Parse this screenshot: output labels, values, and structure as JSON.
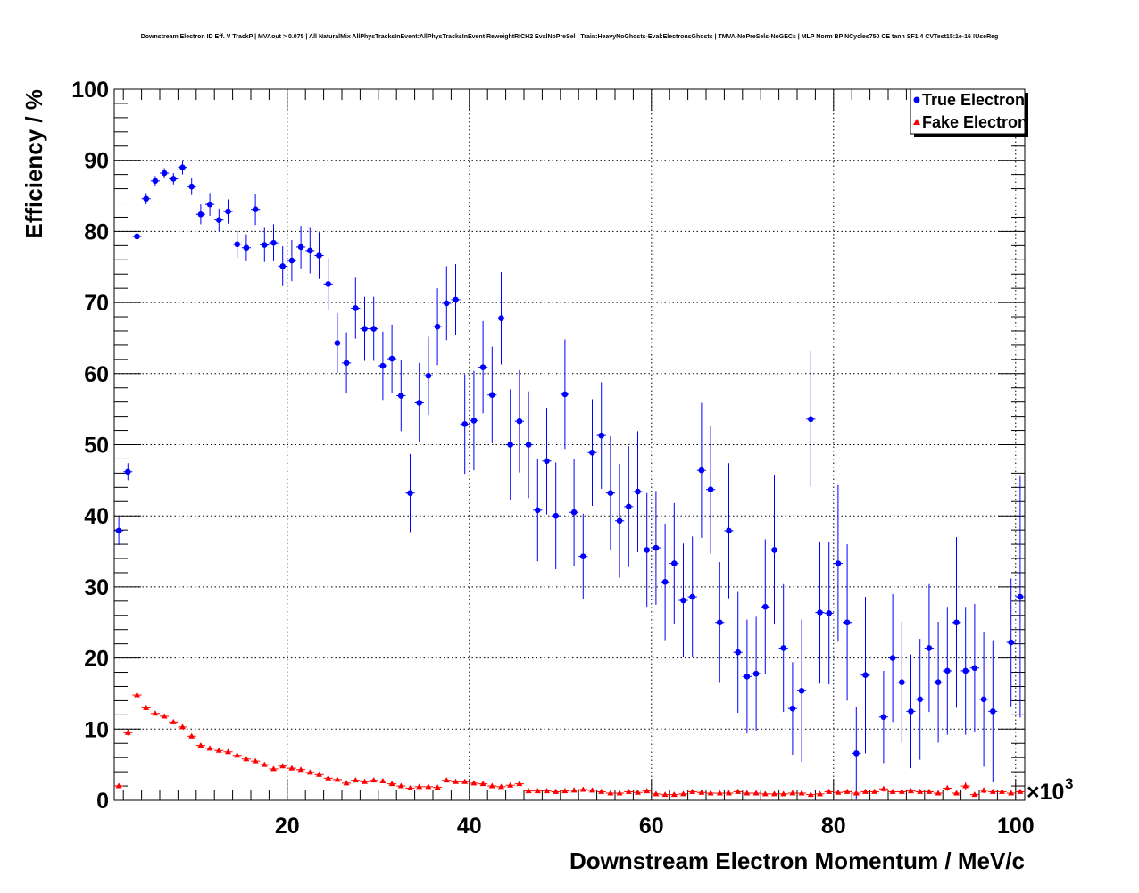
{
  "chart_data": {
    "type": "scatter",
    "title": "Downstream Electron ID Eff. V TrackP | MVAout > 0.075 | All NaturalMix AllPhysTracksInEvent:AllPhysTracksInEvent ReweightRICH2 EvalNoPreSel | Train:HeavyNoGhosts-Eval:ElectronsGhosts | TMVA-NoPreSels-NoGECs | MLP Norm BP NCycles750 CE tanh SF1.4 CVTest15:1e-16 !UseReg",
    "xlabel": "Downstream Electron Momentum / MeV/c",
    "ylabel": "Efficiency / %",
    "x_multiplier_label": "×10",
    "x_multiplier_exp": "3",
    "xlim": [
      1,
      101
    ],
    "ylim": [
      0,
      100
    ],
    "x_ticks": [
      20,
      40,
      60,
      80,
      100
    ],
    "y_ticks": [
      0,
      10,
      20,
      30,
      40,
      50,
      60,
      70,
      80,
      90,
      100
    ],
    "grid": true,
    "legend_position": "top-right",
    "series": [
      {
        "name": "True Electron",
        "color": "#0000ff",
        "marker": "circle",
        "x": [
          1.5,
          2.5,
          3.5,
          4.5,
          5.5,
          6.5,
          7.5,
          8.5,
          9.5,
          10.5,
          11.5,
          12.5,
          13.5,
          14.5,
          15.5,
          16.5,
          17.5,
          18.5,
          19.5,
          20.5,
          21.5,
          22.5,
          23.5,
          24.5,
          25.5,
          26.5,
          27.5,
          28.5,
          29.5,
          30.5,
          31.5,
          32.5,
          33.5,
          34.5,
          35.5,
          36.5,
          37.5,
          38.5,
          39.5,
          40.5,
          41.5,
          42.5,
          43.5,
          44.5,
          45.5,
          46.5,
          47.5,
          48.5,
          49.5,
          50.5,
          51.5,
          52.5,
          53.5,
          54.5,
          55.5,
          56.5,
          57.5,
          58.5,
          59.5,
          60.5,
          61.5,
          62.5,
          63.5,
          64.5,
          65.5,
          66.5,
          67.5,
          68.5,
          69.5,
          70.5,
          71.5,
          72.5,
          73.5,
          74.5,
          75.5,
          76.5,
          77.5,
          78.5,
          79.5,
          80.5,
          81.5,
          82.5,
          83.5,
          85.5,
          86.5,
          87.5,
          88.5,
          89.5,
          90.5,
          91.5,
          92.5,
          93.5,
          94.5,
          95.5,
          96.5,
          97.5,
          99.5,
          100.5
        ],
        "y": [
          37.9,
          46.2,
          79.3,
          84.6,
          87.1,
          88.2,
          87.4,
          89.0,
          86.3,
          82.4,
          83.8,
          81.6,
          82.8,
          78.2,
          77.7,
          83.1,
          78.1,
          78.4,
          75.1,
          75.9,
          77.8,
          77.3,
          76.6,
          72.6,
          64.3,
          61.5,
          69.2,
          66.3,
          66.3,
          61.1,
          62.1,
          56.9,
          43.2,
          55.9,
          59.7,
          66.6,
          69.9,
          70.4,
          52.9,
          53.4,
          60.9,
          57.0,
          67.8,
          50.0,
          53.3,
          50.0,
          40.8,
          47.7,
          40.0,
          57.1,
          40.5,
          34.3,
          48.9,
          51.3,
          43.2,
          39.3,
          41.3,
          43.4,
          35.2,
          35.5,
          30.7,
          33.3,
          28.1,
          28.6,
          46.4,
          43.7,
          25.0,
          37.9,
          20.8,
          17.4,
          17.8,
          27.2,
          35.2,
          21.4,
          12.9,
          15.4,
          53.6,
          26.4,
          26.3,
          33.3,
          25.0,
          6.6,
          17.6,
          11.7,
          20.0,
          16.6,
          12.5,
          14.2,
          21.4,
          16.6,
          18.2,
          25.0,
          18.2,
          18.6,
          14.2,
          12.5,
          22.2,
          28.6
        ],
        "err": [
          2.0,
          1.2,
          0.6,
          0.8,
          0.7,
          0.7,
          0.8,
          1.0,
          1.2,
          1.4,
          1.6,
          1.6,
          1.7,
          1.9,
          1.9,
          2.2,
          2.4,
          2.6,
          2.8,
          2.9,
          3.0,
          3.2,
          3.3,
          3.6,
          4.2,
          4.3,
          4.3,
          4.5,
          4.5,
          4.8,
          4.8,
          5.0,
          5.5,
          5.6,
          5.5,
          5.4,
          5.2,
          5.0,
          7.0,
          7.0,
          6.5,
          6.8,
          6.5,
          7.8,
          7.2,
          7.5,
          7.2,
          7.5,
          7.5,
          7.7,
          7.5,
          6.0,
          7.5,
          7.5,
          8.0,
          8.0,
          8.5,
          8.5,
          8.0,
          8.0,
          8.2,
          8.5,
          8.0,
          8.5,
          9.5,
          9.0,
          8.5,
          9.5,
          8.5,
          8.0,
          8.0,
          9.5,
          10.5,
          9.0,
          6.5,
          10.0,
          9.5,
          10.0,
          10.0,
          11.0,
          11.0,
          6.5,
          11.0,
          6.5,
          9.0,
          8.5,
          8.0,
          8.5,
          9.0,
          8.5,
          9.0,
          12.0,
          9.0,
          9.0,
          9.5,
          10.0,
          9.0,
          17.0
        ]
      },
      {
        "name": "Fake Electron",
        "color": "#ff0000",
        "marker": "triangle",
        "x": [
          1.5,
          2.5,
          3.5,
          4.5,
          5.5,
          6.5,
          7.5,
          8.5,
          9.5,
          10.5,
          11.5,
          12.5,
          13.5,
          14.5,
          15.5,
          16.5,
          17.5,
          18.5,
          19.5,
          20.5,
          21.5,
          22.5,
          23.5,
          24.5,
          25.5,
          26.5,
          27.5,
          28.5,
          29.5,
          30.5,
          31.5,
          32.5,
          33.5,
          34.5,
          35.5,
          36.5,
          37.5,
          38.5,
          39.5,
          40.5,
          41.5,
          42.5,
          43.5,
          44.5,
          45.5,
          46.5,
          47.5,
          48.5,
          49.5,
          50.5,
          51.5,
          52.5,
          53.5,
          54.5,
          55.5,
          56.5,
          57.5,
          58.5,
          59.5,
          60.5,
          61.5,
          62.5,
          63.5,
          64.5,
          65.5,
          66.5,
          67.5,
          68.5,
          69.5,
          70.5,
          71.5,
          72.5,
          73.5,
          74.5,
          75.5,
          76.5,
          77.5,
          78.5,
          79.5,
          80.5,
          81.5,
          82.5,
          83.5,
          84.5,
          85.5,
          86.5,
          87.5,
          88.5,
          89.5,
          90.5,
          91.5,
          92.5,
          93.5,
          94.5,
          95.5,
          96.5,
          97.5,
          98.5,
          99.5,
          100.5
        ],
        "y": [
          2.0,
          9.5,
          14.8,
          13.0,
          12.2,
          11.8,
          11.0,
          10.3,
          9.0,
          7.7,
          7.3,
          7.0,
          6.8,
          6.3,
          5.8,
          5.5,
          5.0,
          4.4,
          4.8,
          4.5,
          4.3,
          3.9,
          3.6,
          3.1,
          2.9,
          2.4,
          2.8,
          2.6,
          2.8,
          2.7,
          2.3,
          2.0,
          1.7,
          1.9,
          1.9,
          1.8,
          2.8,
          2.6,
          2.6,
          2.4,
          2.3,
          2.0,
          1.9,
          2.1,
          2.3,
          1.3,
          1.3,
          1.3,
          1.2,
          1.3,
          1.4,
          1.5,
          1.4,
          1.2,
          1.0,
          1.0,
          1.2,
          1.1,
          1.3,
          0.9,
          0.8,
          0.8,
          0.9,
          1.2,
          1.1,
          1.0,
          1.0,
          1.0,
          1.2,
          1.0,
          1.0,
          0.9,
          0.9,
          0.9,
          1.0,
          1.0,
          0.8,
          0.9,
          1.2,
          1.1,
          1.2,
          1.0,
          1.2,
          1.2,
          1.6,
          1.2,
          1.2,
          1.3,
          1.2,
          1.2,
          1.0,
          1.7,
          1.0,
          2.0,
          0.8,
          1.4,
          1.2,
          1.2,
          1.0,
          1.2
        ],
        "err": [
          0.3,
          0.4,
          0.4,
          0.3,
          0.3,
          0.3,
          0.3,
          0.3,
          0.3,
          0.3,
          0.3,
          0.3,
          0.3,
          0.3,
          0.3,
          0.3,
          0.3,
          0.3,
          0.3,
          0.3,
          0.3,
          0.3,
          0.3,
          0.3,
          0.3,
          0.3,
          0.3,
          0.3,
          0.3,
          0.3,
          0.3,
          0.3,
          0.3,
          0.3,
          0.3,
          0.3,
          0.3,
          0.3,
          0.3,
          0.3,
          0.3,
          0.3,
          0.3,
          0.3,
          0.3,
          0.3,
          0.3,
          0.3,
          0.3,
          0.3,
          0.3,
          0.3,
          0.3,
          0.3,
          0.3,
          0.3,
          0.3,
          0.3,
          0.3,
          0.3,
          0.3,
          0.3,
          0.3,
          0.3,
          0.3,
          0.3,
          0.3,
          0.3,
          0.3,
          0.3,
          0.3,
          0.3,
          0.3,
          0.3,
          0.3,
          0.3,
          0.3,
          0.3,
          0.3,
          0.3,
          0.3,
          0.3,
          0.3,
          0.3,
          0.4,
          0.3,
          0.3,
          0.3,
          0.3,
          0.3,
          0.3,
          0.4,
          0.3,
          0.5,
          0.3,
          0.4,
          0.3,
          0.3,
          0.3,
          0.3
        ]
      }
    ]
  }
}
